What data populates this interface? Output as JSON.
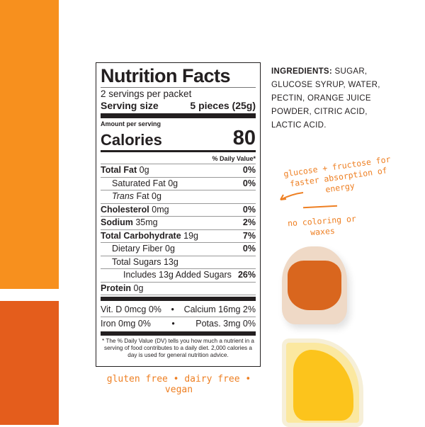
{
  "colors": {
    "bar_top": "#f7901e",
    "bar_bottom": "#e45d1c",
    "handwriting": "#ee7f22"
  },
  "label": {
    "title": "Nutrition Facts",
    "servings": "2 servings per packet",
    "serving_size_label": "Serving size",
    "serving_size_value": "5 pieces (25g)",
    "amount_per_serving": "Amount per serving",
    "calories_label": "Calories",
    "calories_value": "80",
    "dv_header": "% Daily Value*",
    "rows": [
      {
        "name": "Total Fat",
        "amount": "0g",
        "dv": "0%",
        "bold": true,
        "indent": 0
      },
      {
        "name": "Saturated Fat",
        "amount": "0g",
        "dv": "0%",
        "bold": false,
        "indent": 1
      },
      {
        "name": "Trans",
        "amount": "Fat 0g",
        "dv": "",
        "bold": false,
        "indent": 1,
        "italic": true
      },
      {
        "name": "Cholesterol",
        "amount": "0mg",
        "dv": "0%",
        "bold": true,
        "indent": 0
      },
      {
        "name": "Sodium",
        "amount": "35mg",
        "dv": "2%",
        "bold": true,
        "indent": 0
      },
      {
        "name": "Total Carbohydrate",
        "amount": "19g",
        "dv": "7%",
        "bold": true,
        "indent": 0
      },
      {
        "name": "Dietary Fiber",
        "amount": "0g",
        "dv": "0%",
        "bold": false,
        "indent": 1
      },
      {
        "name": "Total Sugars",
        "amount": "13g",
        "dv": "",
        "bold": false,
        "indent": 1
      },
      {
        "name": "Includes 13g Added Sugars",
        "amount": "",
        "dv": "26%",
        "bold": false,
        "indent": 2
      },
      {
        "name": "Protein",
        "amount": "0g",
        "dv": "",
        "bold": true,
        "indent": 0
      }
    ],
    "vitamins": [
      {
        "left": "Vit. D 0mcg 0%",
        "right": "Calcium 16mg 2%"
      },
      {
        "left": "Iron 0mg 0%",
        "right": "Potas. 3mg 0%"
      }
    ],
    "footnote": "* The % Daily Value (DV) tells you how much a nutrient in a serving of food contributes to a daily diet. 2,000 calories a day is used for general nutrition advice."
  },
  "ingredients": {
    "label": "INGREDIENTS:",
    "text": "SUGAR, GLUCOSE SYRUP, WATER, PECTIN, ORANGE JUICE POWDER, CITRIC ACID, LACTIC ACID."
  },
  "notes": {
    "glucose": "glucose + fructose for faster absorption of energy",
    "coloring": "no coloring or waxes",
    "tagline": "gluten free • dairy free • vegan"
  }
}
